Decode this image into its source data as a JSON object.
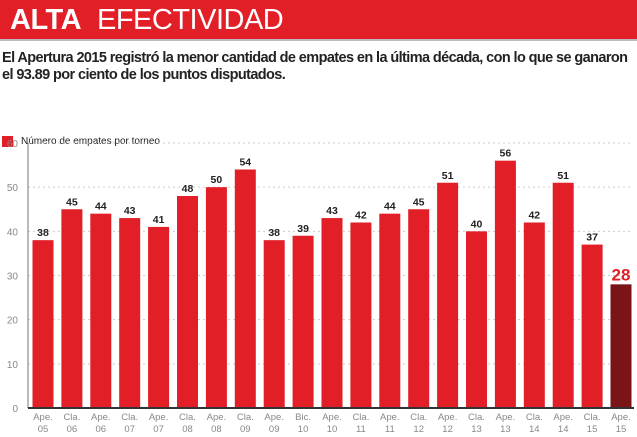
{
  "header": {
    "title_bold": "ALTA",
    "title_light": "EFECTIVIDAD"
  },
  "subtitle": "El Apertura 2015 registró la menor cantidad de empates en la última década, con lo que se ganaron el 93.89 por ciento de los puntos disputados.",
  "chart_data": {
    "type": "bar",
    "legend": "Número de empates por torneo",
    "legend_position": "top-left",
    "categories": [
      [
        "Ape.",
        "05"
      ],
      [
        "Cla.",
        "06"
      ],
      [
        "Ape.",
        "06"
      ],
      [
        "Cla.",
        "07"
      ],
      [
        "Ape.",
        "07"
      ],
      [
        "Cla.",
        "08"
      ],
      [
        "Ape.",
        "08"
      ],
      [
        "Cla.",
        "09"
      ],
      [
        "Ape.",
        "09"
      ],
      [
        "Bic.",
        "10"
      ],
      [
        "Ape.",
        "10"
      ],
      [
        "Cla.",
        "11"
      ],
      [
        "Ape.",
        "11"
      ],
      [
        "Cla.",
        "12"
      ],
      [
        "Ape.",
        "12"
      ],
      [
        "Cla.",
        "13"
      ],
      [
        "Ape.",
        "13"
      ],
      [
        "Cla.",
        "14"
      ],
      [
        "Ape.",
        "14"
      ],
      [
        "Cla.",
        "15"
      ],
      [
        "Ape.",
        "15"
      ]
    ],
    "values": [
      38,
      45,
      44,
      43,
      41,
      48,
      50,
      54,
      38,
      39,
      43,
      42,
      44,
      45,
      51,
      40,
      56,
      42,
      51,
      37,
      28
    ],
    "ylim": [
      0,
      60
    ],
    "yticks": [
      0,
      10,
      20,
      30,
      40,
      50,
      60
    ],
    "grid": true,
    "colors": {
      "bar": "#e21e26",
      "highlight": "#7a1416",
      "highlight_label": "#e21e26"
    },
    "highlight_index": 20
  }
}
